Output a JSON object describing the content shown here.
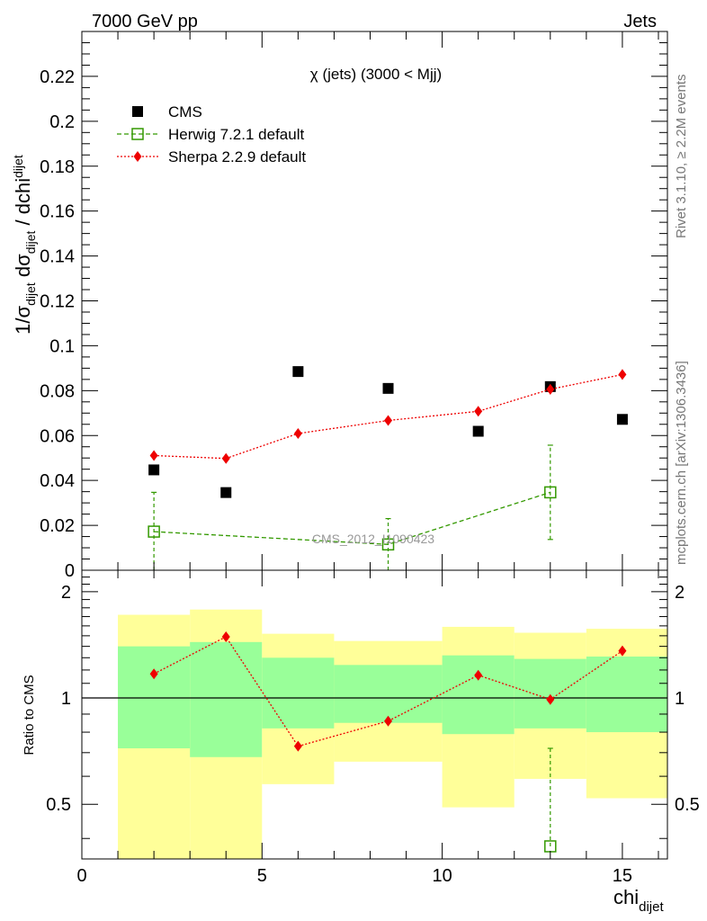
{
  "header": {
    "energy_label": "7000 GeV pp",
    "category_label": "Jets"
  },
  "side_labels": {
    "rivet": "Rivet 3.1.10, ≥ 2.2M events",
    "mcplots": "mcplots.cern.ch [arXiv:1306.3436]"
  },
  "chart_data": [
    {
      "type": "scatter",
      "title": "χ (jets) (3000 < Mjj)",
      "ylabel": "1/σ_dijet dσ_dijet / dchi_dijet",
      "ylabel_parts": {
        "a": "1/σ",
        "a_sub": "dijet",
        "b": " dσ",
        "b_sub": "dijet",
        "c": " / dchi",
        "c_sub": "dijet"
      },
      "xlim": [
        0,
        16.25
      ],
      "ylim": [
        0,
        0.24
      ],
      "yticks": [
        "0",
        "0.02",
        "0.04",
        "0.06",
        "0.08",
        "0.1",
        "0.12",
        "0.14",
        "0.16",
        "0.18",
        "0.2",
        "0.22"
      ],
      "watermark": "CMS_2012_I1090423",
      "legend_position": "top-left",
      "series": [
        {
          "name": "CMS",
          "color": "#000000",
          "marker": "square",
          "x": [
            2,
            4,
            6,
            8.5,
            11,
            13,
            15
          ],
          "y": [
            0.0447,
            0.0346,
            0.0885,
            0.081,
            0.0619,
            0.0818,
            0.0672
          ]
        },
        {
          "name": "Herwig 7.2.1 default",
          "color": "#339900",
          "marker": "open-square",
          "line": "dashed",
          "x": [
            2,
            8.5,
            13
          ],
          "y": [
            0.0172,
            0.0115,
            0.0347
          ],
          "yerr": [
            0.0175,
            0.0115,
            0.021
          ]
        },
        {
          "name": "Sherpa 2.2.9 default",
          "color": "#ee0000",
          "marker": "diamond",
          "line": "dotted",
          "x": [
            2,
            4,
            6,
            8.5,
            11,
            13,
            15
          ],
          "y": [
            0.0511,
            0.0498,
            0.0609,
            0.0667,
            0.0708,
            0.0806,
            0.0872
          ],
          "yerr": [
            0.0012,
            0.0012,
            0.0014,
            0.0014,
            0.0015,
            0.0022,
            0.0022
          ]
        }
      ]
    },
    {
      "type": "scatter",
      "ylabel": "Ratio to CMS",
      "xlabel": "chi_dijet",
      "xlabel_parts": {
        "main": "chi",
        "sub": "dijet"
      },
      "xlim": [
        0,
        16.25
      ],
      "ylim": [
        0.35,
        2.3
      ],
      "xticks": [
        "0",
        "5",
        "10",
        "15"
      ],
      "yticks": [
        "0.5",
        "1",
        "2"
      ],
      "bins": [
        {
          "lo": 1,
          "hi": 3,
          "inner": [
            0.72,
            1.4
          ],
          "outer": [
            0.3,
            1.72
          ]
        },
        {
          "lo": 3,
          "hi": 5,
          "inner": [
            0.68,
            1.44
          ],
          "outer": [
            0.3,
            1.78
          ]
        },
        {
          "lo": 5,
          "hi": 7,
          "inner": [
            0.82,
            1.3
          ],
          "outer": [
            0.57,
            1.52
          ]
        },
        {
          "lo": 7,
          "hi": 10,
          "inner": [
            0.85,
            1.24
          ],
          "outer": [
            0.66,
            1.45
          ]
        },
        {
          "lo": 10,
          "hi": 12,
          "inner": [
            0.79,
            1.32
          ],
          "outer": [
            0.49,
            1.59
          ]
        },
        {
          "lo": 12,
          "hi": 14,
          "inner": [
            0.82,
            1.29
          ],
          "outer": [
            0.59,
            1.53
          ]
        },
        {
          "lo": 14,
          "hi": 16.25,
          "inner": [
            0.8,
            1.31
          ],
          "outer": [
            0.52,
            1.57
          ]
        }
      ],
      "band_colors": {
        "inner": "#99ff99",
        "outer": "#ffff99"
      },
      "series": [
        {
          "name": "Herwig 7.2.1 default",
          "color": "#339900",
          "marker": "open-square",
          "x": [
            13
          ],
          "y": [
            0.38
          ],
          "yerr_hi": [
            0.34
          ]
        },
        {
          "name": "Sherpa 2.2.9 default",
          "color": "#ee0000",
          "marker": "diamond",
          "line": "dotted",
          "x": [
            2,
            4,
            6,
            8.5,
            11,
            13,
            15
          ],
          "y": [
            1.17,
            1.49,
            0.73,
            0.86,
            1.16,
            0.99,
            1.36
          ],
          "yerr": [
            0.03,
            0.035,
            0.02,
            0.02,
            0.025,
            0.03,
            0.03
          ]
        }
      ]
    }
  ]
}
